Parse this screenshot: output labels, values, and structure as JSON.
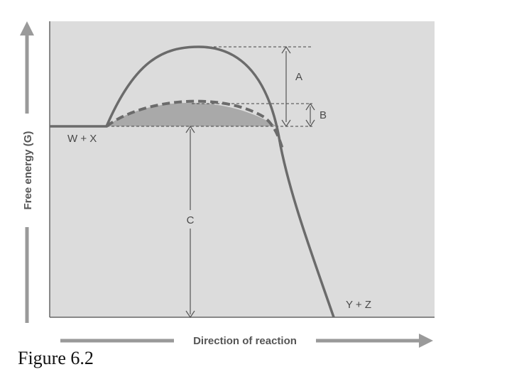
{
  "diagram": {
    "y_axis_label": "Free energy (G)",
    "x_axis_label": "Direction of reaction",
    "reactants_label": "W + X",
    "products_label": "Y + Z",
    "label_a": "A",
    "label_b": "B",
    "label_c": "C"
  },
  "caption": "Figure 6.2",
  "colors": {
    "plot_background": "#dcdcdc",
    "curve": "#6b6b6b",
    "shaded_region": "#a9a9a9",
    "arrow": "#9a9a9a"
  }
}
